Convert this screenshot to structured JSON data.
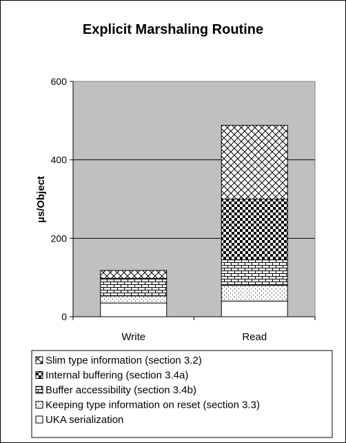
{
  "chart_data": {
    "type": "bar",
    "stacked": true,
    "title": "Explicit Marshaling Routine",
    "xlabel": "",
    "ylabel": "µs/Object",
    "ylim": [
      0,
      600
    ],
    "yticks": [
      0,
      200,
      400,
      600
    ],
    "grid": true,
    "legend_position": "bottom",
    "categories": [
      "Write",
      "Read"
    ],
    "series": [
      {
        "name": "UKA serialization",
        "values": [
          35,
          40
        ],
        "pattern": "plain"
      },
      {
        "name": "Keeping type information on reset (section 3.3)",
        "values": [
          18,
          40
        ],
        "pattern": "dots"
      },
      {
        "name": "Buffer accessibility (section 3.4b)",
        "values": [
          45,
          65
        ],
        "pattern": "brick"
      },
      {
        "name": "Internal buffering (section 3.4a)",
        "values": [
          0,
          155
        ],
        "pattern": "checker"
      },
      {
        "name": "Slim type information (section 3.2)",
        "values": [
          20,
          188
        ],
        "pattern": "diamond"
      }
    ],
    "legend_order": [
      4,
      3,
      2,
      1,
      0
    ],
    "colors": {
      "plot_background": "#c0c0c0",
      "bar_fill": "#ffffff",
      "ink": "#000000"
    }
  }
}
